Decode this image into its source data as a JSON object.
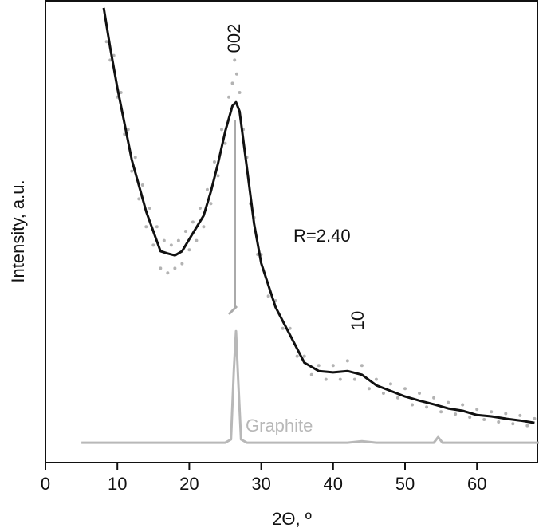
{
  "chart_data": {
    "type": "line",
    "x_label": "2Θ, º",
    "y_label": "Intensity, a.u.",
    "annotations": [
      "002",
      "R=2.40",
      "10"
    ],
    "xlim": [
      0,
      68.7
    ],
    "xticks": [
      0,
      10,
      20,
      30,
      40,
      50,
      60
    ],
    "ylim": [
      0,
      100
    ],
    "yticks": [],
    "series": [
      {
        "kind": "scatter",
        "color": "#b3b3b3",
        "x": [
          8.5,
          9,
          9.5,
          10,
          10.5,
          11,
          11.5,
          12,
          12.5,
          13,
          13.5,
          14,
          14.5,
          15,
          15.5,
          16,
          16.5,
          17,
          17.5,
          18,
          18.5,
          19,
          19.5,
          20,
          20.5,
          21,
          21.5,
          22,
          22.5,
          23,
          23.5,
          24,
          24.5,
          25,
          25.5,
          26,
          26.3,
          26.6,
          27,
          27.5,
          28,
          28.5,
          29,
          29.5,
          30,
          31,
          32,
          33,
          34,
          35,
          36,
          37,
          38,
          39,
          40,
          41,
          42,
          43,
          44,
          45,
          46,
          47,
          48,
          49,
          50,
          51,
          52,
          53,
          54,
          55,
          56,
          57,
          58,
          59,
          60,
          61,
          62,
          63,
          64,
          65,
          66,
          67,
          68
        ],
        "values": [
          91,
          87,
          88,
          79,
          80,
          71,
          72,
          63,
          66,
          57,
          60,
          51,
          55,
          47,
          51,
          42,
          48,
          41,
          47,
          42,
          48,
          43,
          50,
          46,
          52,
          48,
          55,
          51,
          59,
          56,
          65,
          62,
          72,
          69,
          79,
          82,
          87,
          84,
          80,
          72,
          66,
          56,
          53,
          45,
          45,
          36,
          35,
          29,
          29,
          23,
          23,
          19,
          21,
          18,
          21,
          18,
          22,
          18,
          21,
          16,
          18,
          15,
          17,
          14,
          16,
          12.5,
          15,
          12,
          14,
          11,
          13,
          10.5,
          12.5,
          9.8,
          11.5,
          9.3,
          11,
          8.8,
          10.6,
          8.4,
          10.2,
          8,
          9.5
        ]
      },
      {
        "kind": "line",
        "color": "#111111",
        "x": [
          8.1,
          9,
          10,
          12,
          14,
          15,
          16,
          17,
          18,
          19,
          20,
          22,
          23,
          24,
          25,
          26,
          26.5,
          27,
          28,
          29,
          30,
          32,
          34,
          36,
          38,
          40,
          42,
          44,
          46,
          48,
          50,
          52,
          54,
          56,
          58,
          60,
          62,
          64,
          66,
          68
        ],
        "values": [
          98.3,
          89.7,
          81,
          65.5,
          54.3,
          50,
          45.7,
          45.2,
          44.8,
          45.7,
          48.3,
          53.4,
          58.6,
          64.7,
          71.6,
          77.1,
          77.9,
          75.9,
          63.8,
          51.7,
          43.1,
          33.6,
          27.6,
          21.6,
          19.8,
          19.5,
          19.8,
          19,
          16.7,
          15.5,
          14.3,
          13.4,
          12.6,
          11.7,
          11.2,
          10.3,
          10,
          9.5,
          9.1,
          8.6
        ]
      },
      {
        "kind": "line",
        "name": "Graphite",
        "color": "#b8b8b8",
        "x": [
          5,
          25,
          25.8,
          26.2,
          26.5,
          26.8,
          27.2,
          28,
          42,
          44,
          46,
          54,
          54.6,
          55.2,
          68.7
        ],
        "values": [
          4.3,
          4.3,
          5,
          20,
          28.4,
          18,
          5,
          4.3,
          4.3,
          4.6,
          4.3,
          4.3,
          5.5,
          4.3,
          4.3
        ]
      }
    ]
  }
}
